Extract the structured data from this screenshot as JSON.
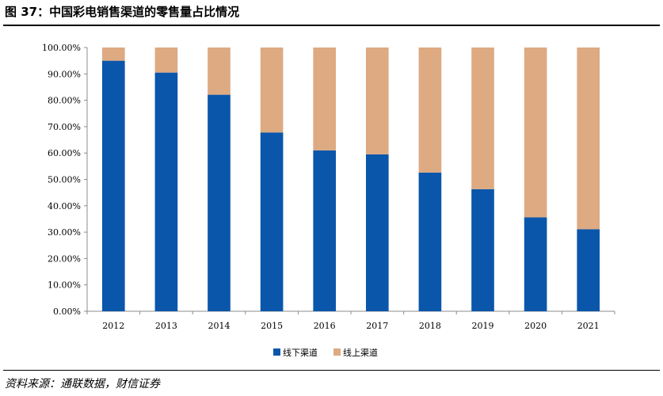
{
  "figure": {
    "title": "图 37：中国彩电销售渠道的零售量占比情况",
    "source": "资料来源：通联数据，财信证券"
  },
  "chart_data": {
    "type": "bar",
    "stacked": true,
    "categories": [
      "2012",
      "2013",
      "2014",
      "2015",
      "2016",
      "2017",
      "2018",
      "2019",
      "2020",
      "2021"
    ],
    "series": [
      {
        "name": "线下渠道",
        "color": "#0a56aa",
        "values": [
          95.0,
          90.5,
          82.1,
          67.8,
          61.0,
          59.5,
          52.6,
          46.3,
          35.6,
          31.1
        ]
      },
      {
        "name": "线上渠道",
        "color": "#ddaa82",
        "values": [
          5.0,
          9.5,
          17.9,
          32.2,
          39.0,
          40.5,
          47.4,
          53.7,
          64.4,
          68.9
        ]
      }
    ],
    "yticks": [
      "0.00%",
      "10.00%",
      "20.00%",
      "30.00%",
      "40.00%",
      "50.00%",
      "60.00%",
      "70.00%",
      "80.00%",
      "90.00%",
      "100.00%"
    ],
    "ylim": [
      0,
      100
    ],
    "grid": false,
    "legend_position": "bottom"
  }
}
